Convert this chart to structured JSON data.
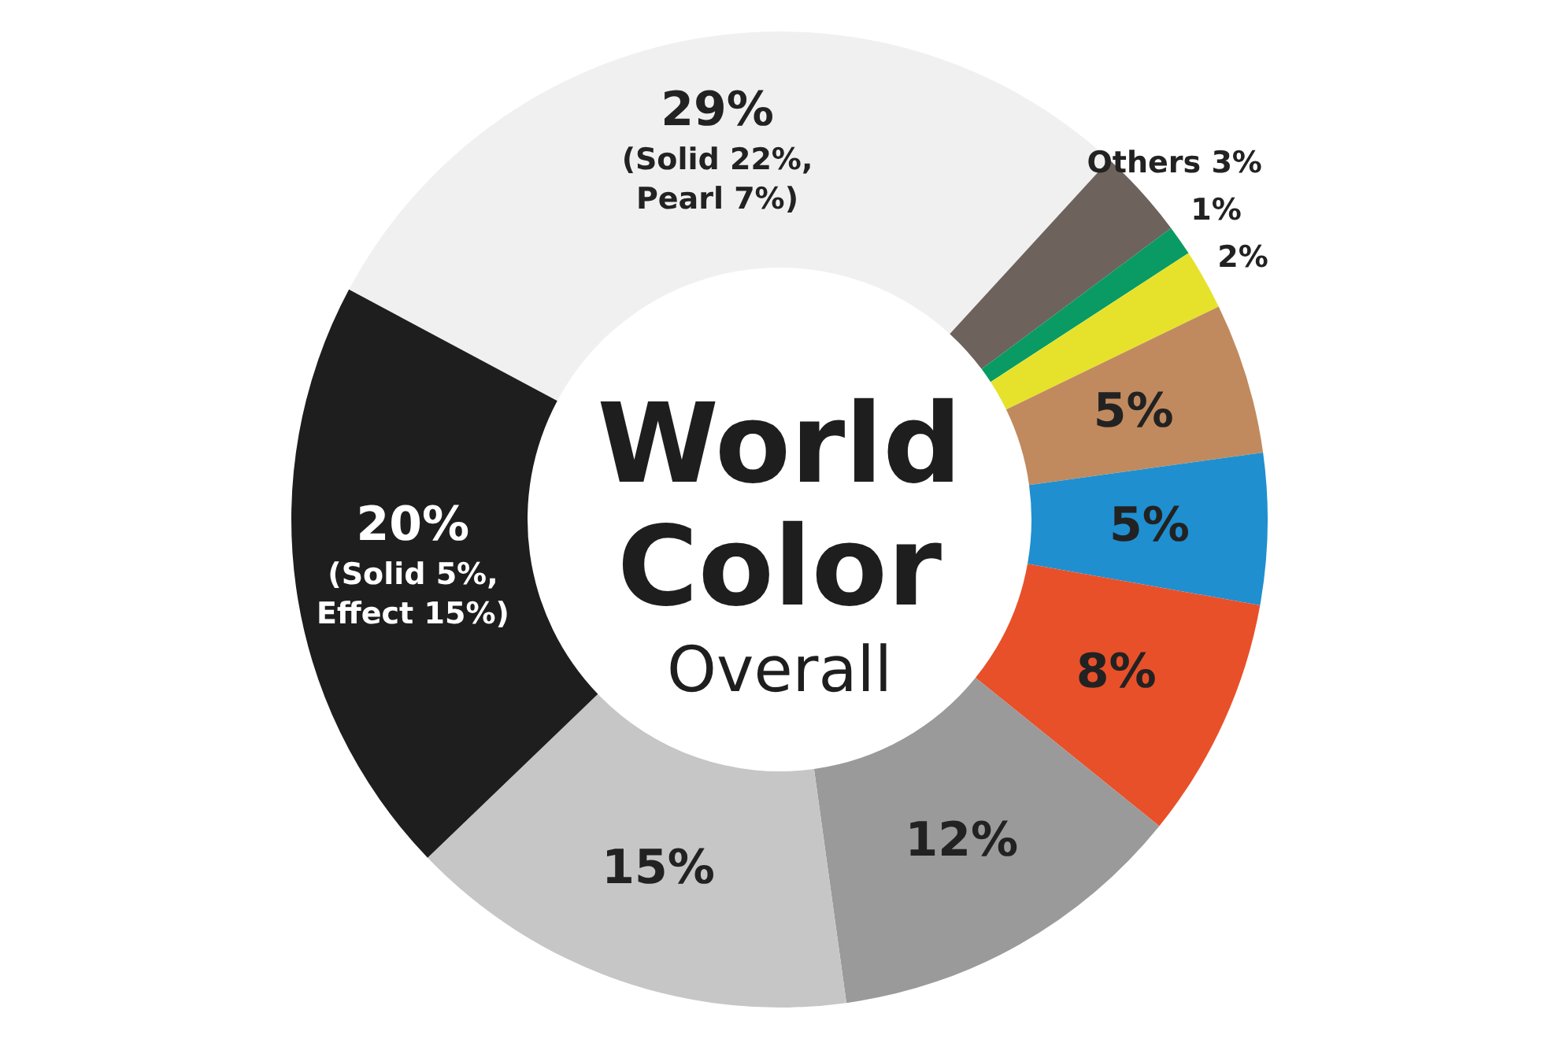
{
  "chart_data": {
    "type": "donut",
    "title": "World Color",
    "subtitle": "Overall",
    "categories": [
      null,
      "Others",
      null,
      null,
      null,
      null,
      null,
      null,
      null,
      null
    ],
    "values": [
      29,
      3,
      1,
      2,
      5,
      5,
      8,
      12,
      15,
      20
    ],
    "colors": [
      "#f0f0f0",
      "#6e625c",
      "#0a9b64",
      "#e6e22c",
      "#c08a5e",
      "#1f8fd0",
      "#e8502a",
      "#9a9a9a",
      "#c6c6c6",
      "#1e1e1e"
    ],
    "value_labels": [
      "29%\n(Solid 22%,\nPearl 7%)",
      "3%",
      "1%",
      "2%",
      "5%",
      "5%",
      "8%",
      "12%",
      "15%",
      "20%\n(Solid 5%,\nEffect 15%)"
    ]
  }
}
